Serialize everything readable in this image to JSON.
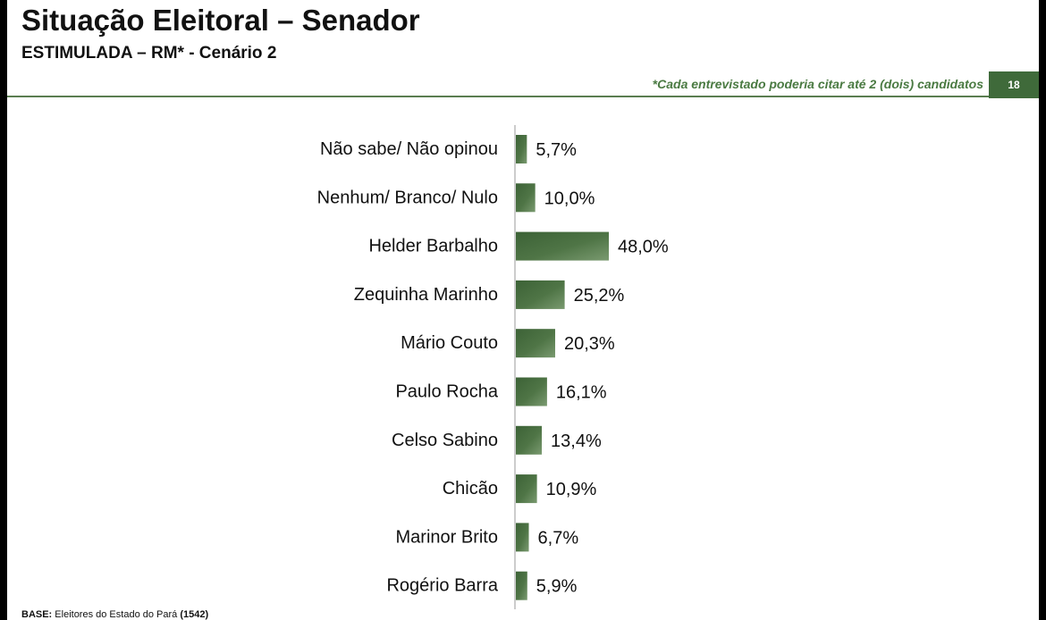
{
  "slide": {
    "title": "Situação Eleitoral – Senador",
    "subtitle": "ESTIMULADA – RM* - Cenário 2",
    "note": "*Cada entrevistado poderia citar até 2 (dois) candidatos",
    "page_number": "18",
    "base_label": "BASE:",
    "base_text": " Eleitores do Estado do Pará ",
    "base_count": "(1542)"
  },
  "colors": {
    "bar_dark": "#3c6236",
    "bar_light": "#7a9a70",
    "accent": "#4a7a42"
  },
  "chart_data": {
    "type": "bar",
    "orientation": "horizontal",
    "categories": [
      "Não sabe/ Não opinou",
      "Nenhum/ Branco/ Nulo",
      "Helder Barbalho",
      "Zequinha Marinho",
      "Mário Couto",
      "Paulo Rocha",
      "Celso Sabino",
      "Chicão",
      "Marinor Brito",
      "Rogério Barra"
    ],
    "values": [
      5.7,
      10.0,
      48.0,
      25.2,
      20.3,
      16.1,
      13.4,
      10.9,
      6.7,
      5.9
    ],
    "value_labels": [
      "5,7%",
      "10,0%",
      "48,0%",
      "25,2%",
      "20,3%",
      "16,1%",
      "13,4%",
      "10,9%",
      "6,7%",
      "5,9%"
    ],
    "xlim": [
      0,
      48
    ],
    "grid": false
  }
}
